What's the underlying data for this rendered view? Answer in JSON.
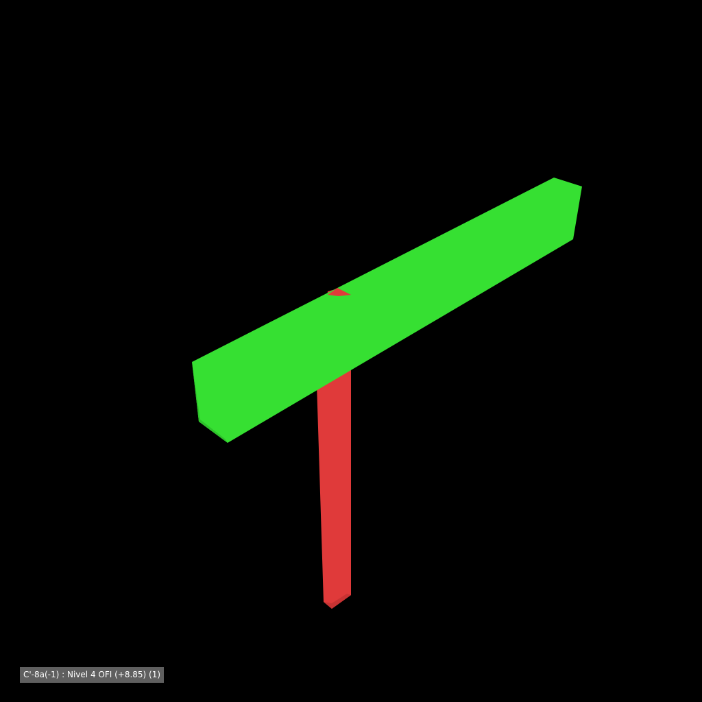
{
  "viewport": {
    "background_color": "#000000"
  },
  "scene": {
    "elements": [
      {
        "name": "column-element",
        "color": "#e03a3a",
        "shade_color": "#c83333"
      },
      {
        "name": "beam-element",
        "color": "#36e032",
        "shade_color": "#2ec22b"
      }
    ]
  },
  "status_label": {
    "text": "C'-8a(-1) : Nivel 4 OFI (+8.85) (1)",
    "background_color": "#5f5f5f"
  }
}
